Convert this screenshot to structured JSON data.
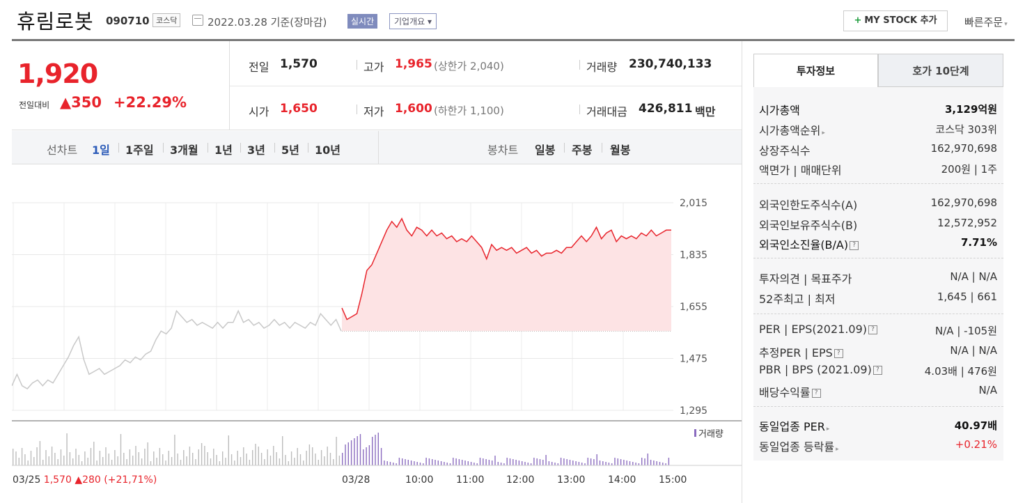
{
  "header": {
    "company_name": "휴림로봇",
    "stock_code": "090710",
    "market": "코스닥",
    "date_text": "2022.03.28 기준(장마감)",
    "live_badge": "실시간",
    "corp_info_button": "기업개요 ▾",
    "mystock_button": "MY STOCK 추가",
    "quick_order": "빠른주문"
  },
  "price": {
    "current": "1,920",
    "prev_label": "전일대비",
    "change": "▲350",
    "change_pct": "+22.29%"
  },
  "stats": {
    "prev_label": "전일",
    "prev_value": "1,570",
    "open_label": "시가",
    "open_value": "1,650",
    "high_label": "고가",
    "high_value": "1,965",
    "upper_limit": "(상한가 2,040)",
    "low_label": "저가",
    "low_value": "1,600",
    "lower_limit": "(하한가 1,100)",
    "volume_label": "거래량",
    "volume_value": "230,740,133",
    "amount_label": "거래대금",
    "amount_value": "426,811",
    "amount_unit": "백만"
  },
  "period_bar": {
    "line_label": "선차트",
    "line_options": [
      "1일",
      "1주일",
      "3개월",
      "1년",
      "3년",
      "5년",
      "10년"
    ],
    "candle_label": "봉차트",
    "candle_options": [
      "일봉",
      "주봉",
      "월봉"
    ]
  },
  "chart_data": {
    "type": "line",
    "y_ticks": [
      "2,015",
      "1,835",
      "1,655",
      "1,475",
      "1,295"
    ],
    "ylim": [
      1295,
      2015
    ],
    "x_ticks": [
      "03/28",
      "10:00",
      "11:00",
      "12:00",
      "13:00",
      "14:00",
      "15:00"
    ],
    "prev_day_info": "03/25 1,570 ▲280 (+21,71%)",
    "volume_label": "거래량",
    "reference_line": 1570,
    "series": [
      {
        "values": [
          1380,
          1420,
          1380,
          1370,
          1390,
          1400,
          1380,
          1400,
          1390,
          1420,
          1450,
          1480,
          1520,
          1550,
          1470,
          1420,
          1430,
          1440,
          1420,
          1430,
          1440,
          1450,
          1470,
          1460,
          1480,
          1470,
          1490,
          1500,
          1540,
          1570,
          1560,
          1580,
          1640,
          1620,
          1600,
          1610,
          1590,
          1600,
          1590,
          1580,
          1600,
          1580,
          1600,
          1600,
          1640,
          1600,
          1610,
          1590,
          1600,
          1580,
          1590,
          1610,
          1590,
          1600,
          1580,
          1600,
          1590,
          1580,
          1600,
          1590,
          1630,
          1610,
          1590,
          1610,
          1570
        ]
      },
      {
        "values": [
          1650,
          1610,
          1620,
          1630,
          1700,
          1780,
          1800,
          1840,
          1880,
          1920,
          1950,
          1930,
          1960,
          1920,
          1900,
          1930,
          1920,
          1900,
          1920,
          1900,
          1910,
          1890,
          1900,
          1880,
          1890,
          1880,
          1900,
          1880,
          1860,
          1820,
          1870,
          1850,
          1860,
          1850,
          1860,
          1840,
          1850,
          1860,
          1840,
          1850,
          1830,
          1840,
          1840,
          1850,
          1840,
          1860,
          1860,
          1880,
          1900,
          1880,
          1900,
          1930,
          1890,
          1910,
          1920,
          1880,
          1900,
          1890,
          1900,
          1890,
          1910,
          1900,
          1920,
          1900,
          1910,
          1920,
          1920
        ]
      }
    ]
  },
  "right_panel": {
    "tab_active": "투자정보",
    "tab_inactive": "호가 10단계",
    "rows": [
      {
        "label": "시가총액",
        "value": "3,129억원",
        "bold": true
      },
      {
        "label": "시가총액순위",
        "value": "코스닥 303위"
      },
      {
        "label": "상장주식수",
        "value": "162,970,698"
      },
      {
        "label": "액면가 | 매매단위",
        "value": "200원 | 1주"
      },
      {
        "label": "외국인한도주식수(A)",
        "value": "162,970,698"
      },
      {
        "label": "외국인보유주식수(B)",
        "value": "12,572,952"
      },
      {
        "label": "외국인소진율(B/A)",
        "value": "7.71%",
        "bold": true
      },
      {
        "label": "투자의견 | 목표주가",
        "value": "N/A | N/A"
      },
      {
        "label": "52주최고 | 최저",
        "value": "1,645 | 661"
      },
      {
        "label": "PER | EPS(2021.09)",
        "value": "N/A | -105원"
      },
      {
        "label": "추정PER | EPS",
        "value": "N/A | N/A"
      },
      {
        "label": "PBR | BPS (2021.09)",
        "value": "4.03배 | 476원"
      },
      {
        "label": "배당수익률",
        "value": "N/A"
      },
      {
        "label": "동일업종 PER",
        "value": "40.97배",
        "bold": true
      },
      {
        "label": "동일업종 등락률",
        "value": "+0.21%",
        "red": true
      }
    ]
  },
  "colors": {
    "up_red": "#e8232b",
    "active_blue": "#2b5bb8",
    "volume_purple": "#8a6bbf",
    "area_fill": "#fde3e4"
  }
}
